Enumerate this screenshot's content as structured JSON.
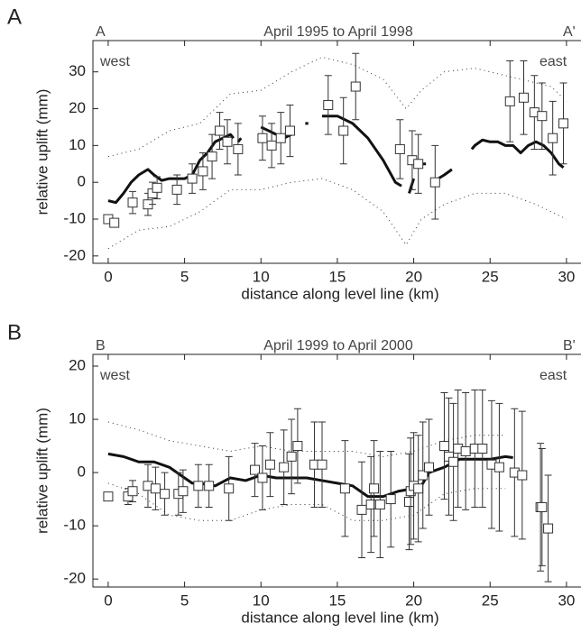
{
  "chart_data": [
    {
      "type": "errorbar",
      "panel_label": "A",
      "left_label": "A",
      "right_label": "A'",
      "title": "April 1995 to April 1998",
      "west_label": "west",
      "east_label": "east",
      "xlabel": "distance along level line (km)",
      "ylabel": "relative uplift  (mm)",
      "xlim": [
        -1,
        30.95
      ],
      "xticks": [
        0,
        5,
        10,
        15,
        20,
        25,
        30
      ],
      "ylim": [
        -22,
        38.5
      ],
      "yticks": [
        -20,
        -10,
        0,
        10,
        20,
        30
      ],
      "series": [
        {
          "style": "dotted",
          "color": "#333333",
          "x": [
            0,
            2,
            4,
            6,
            8,
            10,
            12,
            14,
            16,
            18,
            19.5,
            20.5,
            22,
            24,
            26,
            28,
            29,
            30
          ],
          "values": [
            7,
            9,
            14,
            16,
            24,
            25,
            30,
            34,
            32,
            28,
            20,
            25,
            30,
            31,
            29,
            27,
            26,
            22
          ]
        },
        {
          "style": "dotted",
          "color": "#333333",
          "x": [
            0,
            2,
            4,
            6,
            8,
            10,
            12,
            14,
            16,
            18,
            19.5,
            20.5,
            22,
            24,
            26,
            28,
            29,
            30
          ],
          "values": [
            -18,
            -13,
            -12,
            -8,
            -2,
            -2,
            0,
            1,
            -2,
            -8,
            -17,
            -10,
            -6,
            -3,
            -3,
            -6,
            -8,
            -10
          ]
        },
        {
          "style": "line",
          "color": "#111111",
          "x": [
            0,
            0.5,
            1,
            1.5,
            2,
            2.6,
            3,
            3.5,
            4,
            4.5,
            5,
            5.5,
            6,
            6.5,
            7,
            7.5,
            8,
            8.2,
            null,
            8.5,
            8.7,
            null,
            10,
            10.5,
            11,
            null,
            11.5,
            12,
            null,
            12.9,
            13.1,
            null,
            14,
            15,
            16,
            17,
            18,
            18.8,
            19.2,
            null,
            19.7,
            20,
            null,
            20.4,
            20.8,
            null,
            21.6,
            22,
            22.5,
            null,
            23.8,
            24,
            24.5,
            25,
            25.5,
            26,
            26.5,
            27,
            27.5,
            28,
            28.5,
            29,
            29.5,
            29.8
          ],
          "values": [
            -5,
            -5.5,
            -3,
            0,
            2,
            3.5,
            2,
            0.5,
            1,
            1,
            1,
            2,
            6,
            8,
            11,
            12,
            13,
            12,
            null,
            11,
            12,
            null,
            15,
            14,
            13,
            null,
            12,
            13,
            null,
            16,
            16,
            null,
            18,
            18,
            16,
            12,
            6,
            0,
            -1,
            null,
            -3,
            1,
            null,
            5,
            5,
            null,
            1,
            2,
            3.5,
            null,
            9,
            10,
            11.5,
            11,
            11,
            10,
            10,
            8,
            10,
            11,
            10,
            8,
            5,
            4
          ]
        },
        {
          "style": "points",
          "color": "#333333",
          "x": [
            0,
            0.4,
            1.6,
            2.6,
            2.9,
            3.2,
            4.5,
            5.5,
            6.2,
            6.8,
            7.3,
            7.8,
            8.5,
            10.1,
            10.7,
            11.3,
            11.9,
            14.4,
            15.4,
            16.2,
            19.1,
            19.9,
            20.3,
            21.4,
            26.3,
            27.2,
            27.9,
            28.4,
            29.1,
            29.8
          ],
          "values": [
            -10,
            -11,
            -5.5,
            -6,
            -3,
            -1.5,
            -2,
            1,
            3,
            7,
            14,
            11,
            9,
            12,
            10,
            12,
            14,
            21,
            14,
            26,
            9,
            6,
            5,
            0,
            22,
            23,
            19,
            18,
            12,
            16
          ],
          "errors": [
            1,
            1,
            3,
            3,
            3,
            3,
            4,
            4,
            5,
            6,
            5,
            6,
            7,
            6,
            6,
            7,
            7,
            8,
            9,
            9,
            8,
            8,
            8,
            10,
            11,
            10,
            10,
            9,
            10,
            11
          ]
        }
      ]
    },
    {
      "type": "errorbar",
      "panel_label": "B",
      "left_label": "B",
      "right_label": "B'",
      "title": "April 1999 to April 2000",
      "west_label": "west",
      "east_label": "east",
      "xlabel": "distance along level line (km)",
      "ylabel": "relative uplift (mm)",
      "xlim": [
        -1,
        30.95
      ],
      "xticks": [
        0,
        5,
        10,
        15,
        20,
        25,
        30
      ],
      "ylim": [
        -21.5,
        22.2
      ],
      "yticks": [
        -20,
        -10,
        0,
        10,
        20
      ],
      "series": [
        {
          "style": "dotted",
          "color": "#333333",
          "x": [
            0,
            2,
            4,
            6,
            8,
            10,
            12,
            14,
            16,
            18,
            20,
            22,
            24,
            26
          ],
          "values": [
            9.5,
            8,
            6,
            5,
            4,
            5,
            4,
            4,
            4,
            3,
            4,
            6,
            7,
            7
          ]
        },
        {
          "style": "dotted",
          "color": "#333333",
          "x": [
            0,
            2,
            4,
            6,
            8,
            10,
            12,
            14,
            16,
            18,
            20,
            22,
            24,
            26
          ],
          "values": [
            -2,
            -4,
            -8,
            -9,
            -9,
            -7,
            -6,
            -6,
            -9,
            -9,
            -8,
            -4,
            -3,
            -3
          ]
        },
        {
          "style": "line",
          "color": "#111111",
          "x": [
            0,
            1,
            2,
            3,
            4,
            5,
            5.5,
            6,
            7,
            8,
            9,
            10,
            11,
            12,
            13,
            14,
            15,
            16,
            17,
            18,
            19,
            20,
            20.5,
            21,
            22,
            23,
            24,
            25,
            26,
            26.5
          ],
          "values": [
            3.5,
            3,
            2,
            2,
            1,
            -1,
            -2,
            -2,
            -2.5,
            -1,
            -1.5,
            -0.5,
            -1,
            -1,
            -1,
            -1.5,
            -2,
            -2.5,
            -4.5,
            -4.5,
            -3.5,
            -3,
            -2.5,
            0,
            1,
            2.5,
            2.5,
            2.5,
            3,
            2.8
          ]
        },
        {
          "style": "points",
          "color": "#333333",
          "x": [
            0,
            1.3,
            1.6,
            2.6,
            3.1,
            3.7,
            4.6,
            4.9,
            5.9,
            6.6,
            7.9,
            9.6,
            10.1,
            10.6,
            11.5,
            12,
            12.4,
            13.5,
            14,
            15.5,
            16.6,
            17.2,
            17.4,
            17.8,
            18.5,
            19.7,
            19.8,
            20,
            20.3,
            20.6,
            21,
            22,
            22.3,
            22.6,
            22.9,
            23.4,
            24,
            24.5,
            25.1,
            25.6,
            26.6,
            27.1,
            28.3,
            28.4,
            28.8
          ],
          "values": [
            -4.5,
            -4.5,
            -3.5,
            -2.5,
            -3,
            -4,
            -4,
            -3.5,
            -2.5,
            -2.5,
            -3,
            0.5,
            -1,
            1.5,
            1,
            3,
            5,
            1.5,
            1.5,
            -3,
            -7,
            -6,
            -3,
            -6,
            -5,
            -5.5,
            -3.5,
            -2.5,
            -3,
            -0.5,
            1,
            5,
            3,
            2,
            4.5,
            4,
            4.5,
            4.5,
            1.5,
            1,
            0,
            -0.5,
            -6.5,
            -6.5,
            -10.5
          ],
          "errors": [
            0.5,
            1.5,
            2,
            4,
            4,
            4,
            4,
            4,
            4,
            4,
            6,
            5,
            6,
            6,
            7,
            7,
            7,
            8,
            8,
            9,
            9,
            9,
            9,
            10,
            9,
            9,
            10,
            10,
            10,
            10,
            9,
            10,
            11,
            11,
            11,
            11,
            11,
            11,
            12,
            12,
            12,
            12,
            12,
            11,
            10
          ]
        }
      ]
    }
  ]
}
